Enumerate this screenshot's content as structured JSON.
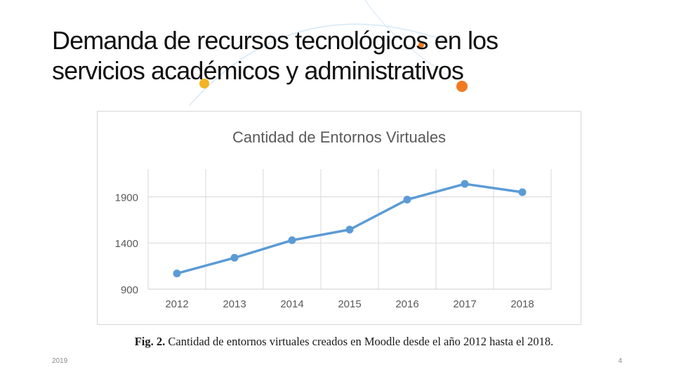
{
  "slide": {
    "title_line1": "Demanda de recursos tecnológicos en los",
    "title_line2": "servicios académicos y administrativos",
    "date": "2019",
    "page_number": "4"
  },
  "caption": {
    "label": "Fig. 2.",
    "text": "Cantidad de entornos virtuales creados en Moodle desde el año 2012 hasta el 2018."
  },
  "colors": {
    "line": "#5B9BD5",
    "grid": "#d9d9d9",
    "title_text": "#595959",
    "tick_text": "#595959",
    "deco_orange": "#f07b1f",
    "deco_yellow": "#f5b324",
    "deco_blue": "#d4e8f7"
  },
  "chart_data": {
    "type": "line",
    "title": "Cantidad de Entornos Virtuales",
    "categories": [
      "2012",
      "2013",
      "2014",
      "2015",
      "2016",
      "2017",
      "2018"
    ],
    "series": [
      {
        "name": "Entornos virtuales",
        "values": [
          1070,
          1240,
          1430,
          1545,
          1870,
          2040,
          1950
        ]
      }
    ],
    "xlabel": "",
    "ylabel": "",
    "ylim": [
      900,
      2200
    ],
    "yticks": [
      900,
      1400,
      1900
    ],
    "grid": true,
    "legend": "none"
  }
}
